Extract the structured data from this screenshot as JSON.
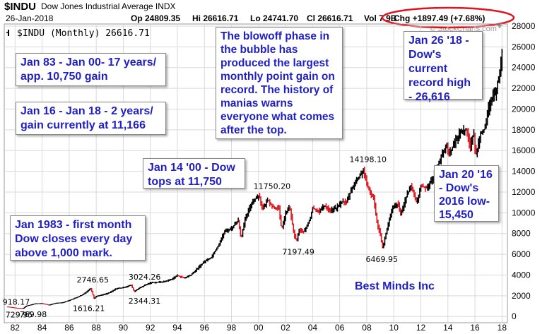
{
  "header": {
    "ticker": "$INDU",
    "name": "Dow Jones Industrial Average INDX",
    "date": "26-Jan-2018",
    "op": "Op 24809.35",
    "hi": "Hi 26616.71",
    "lo": "Lo 24741.70",
    "cl": "Cl 26616.71",
    "vol": "Vol 7.9B",
    "chg": "Chg +1897.49 (+7.68%)",
    "watermark": "© StockCharts.com",
    "legend": "$INDU (Monthly) 26616.71"
  },
  "colors": {
    "up_bar": "#000000",
    "down_bar": "#e0141e",
    "annotation_text": "#1f1fc4",
    "highlight_ellipse": "#e0141e",
    "grid": "#d9d9d9"
  },
  "annotations": {
    "a1": "Jan 83 - Jan 00- 17 years/\napp. 10,750 gain",
    "a2": "Jan 16 - Jan 18 - 2 years/\ngain currently at 11,166",
    "a3": "The blowoff phase in\nthe bubble has\nproduced the largest\nmonthly point gain on\nrecord. The history of\nmanias warns\neveryone what comes\nafter the top.",
    "a4": "Jan 26 '18 -\nDow's\ncurrent\nrecord high\n- 26,616",
    "a5": "Jan 14 '00 - Dow\ntops at 11,750",
    "a6": "Jan 20 '16\n- Dow's\n2016 low-\n15,450",
    "a7": "Jan 1983 - first month\nDow closes every day\nabove 1,000 mark.",
    "a8": "Best Minds Inc"
  },
  "chart_data": {
    "type": "line",
    "title": "$INDU Dow Jones Industrial Average INDX",
    "subtitle": "$INDU (Monthly) 26616.71",
    "xlabel": "",
    "ylabel": "",
    "x_ticks": [
      "82",
      "84",
      "86",
      "88",
      "90",
      "92",
      "94",
      "96",
      "98",
      "00",
      "02",
      "04",
      "06",
      "08",
      "10",
      "12",
      "14",
      "16",
      "18"
    ],
    "y_ticks": [
      0,
      2000,
      4000,
      6000,
      8000,
      10000,
      12000,
      14000,
      16000,
      18000,
      20000,
      22000,
      24000,
      26000,
      28000
    ],
    "xlim": [
      1981.2,
      2018.4
    ],
    "ylim": [
      -600,
      28200
    ],
    "grid": true,
    "series": [
      {
        "name": "$INDU (Monthly)",
        "points": [
          [
            1981.5,
            918.17
          ],
          [
            1982.2,
            790
          ],
          [
            1982.6,
            776.9
          ],
          [
            1982.8,
            1000
          ],
          [
            1983.0,
            1070
          ],
          [
            1983.5,
            1230
          ],
          [
            1984.0,
            1250
          ],
          [
            1984.5,
            1100
          ],
          [
            1985.0,
            1280
          ],
          [
            1985.5,
            1330
          ],
          [
            1986.0,
            1550
          ],
          [
            1986.5,
            1800
          ],
          [
            1987.0,
            2100
          ],
          [
            1987.6,
            2722.42
          ],
          [
            1987.83,
            1738.74
          ],
          [
            1988.0,
            1950
          ],
          [
            1988.5,
            2100
          ],
          [
            1989.0,
            2300
          ],
          [
            1989.5,
            2700
          ],
          [
            1989.9,
            2750
          ],
          [
            1990.4,
            2950
          ],
          [
            1990.6,
            2999.75
          ],
          [
            1990.8,
            2365.1
          ],
          [
            1991.0,
            2600
          ],
          [
            1991.5,
            2950
          ],
          [
            1992.0,
            3250
          ],
          [
            1992.5,
            3300
          ],
          [
            1993.0,
            3350
          ],
          [
            1993.5,
            3550
          ],
          [
            1994.0,
            3950
          ],
          [
            1994.5,
            3700
          ],
          [
            1995.0,
            4000
          ],
          [
            1995.5,
            4650
          ],
          [
            1996.0,
            5300
          ],
          [
            1996.5,
            5700
          ],
          [
            1997.0,
            6800
          ],
          [
            1997.5,
            8200
          ],
          [
            1998.0,
            8500
          ],
          [
            1998.5,
            9300
          ],
          [
            1998.7,
            7550
          ],
          [
            1999.0,
            9300
          ],
          [
            1999.5,
            11000
          ],
          [
            2000.04,
            11722.98
          ],
          [
            2000.3,
            10300
          ],
          [
            2000.7,
            11300
          ],
          [
            2001.0,
            10600
          ],
          [
            2001.5,
            10400
          ],
          [
            2001.7,
            8400
          ],
          [
            2002.0,
            9900
          ],
          [
            2002.3,
            10600
          ],
          [
            2002.6,
            8000
          ],
          [
            2002.8,
            7286.27
          ],
          [
            2003.0,
            8300
          ],
          [
            2003.4,
            8200
          ],
          [
            2003.8,
            9400
          ],
          [
            2004.0,
            10450
          ],
          [
            2004.5,
            10150
          ],
          [
            2004.9,
            10700
          ],
          [
            2005.3,
            10200
          ],
          [
            2005.8,
            10500
          ],
          [
            2006.2,
            11100
          ],
          [
            2006.5,
            11000
          ],
          [
            2006.9,
            12400
          ],
          [
            2007.3,
            13200
          ],
          [
            2007.77,
            14164.53
          ],
          [
            2008.0,
            12600
          ],
          [
            2008.5,
            11400
          ],
          [
            2008.8,
            8800
          ],
          [
            2009.0,
            8000
          ],
          [
            2009.18,
            6547.05
          ],
          [
            2009.5,
            8500
          ],
          [
            2009.9,
            10400
          ],
          [
            2010.3,
            10900
          ],
          [
            2010.5,
            9800
          ],
          [
            2010.9,
            11500
          ],
          [
            2011.3,
            12600
          ],
          [
            2011.7,
            10900
          ],
          [
            2012.0,
            12600
          ],
          [
            2012.4,
            12400
          ],
          [
            2012.8,
            13100
          ],
          [
            2013.3,
            14800
          ],
          [
            2013.9,
            16500
          ],
          [
            2014.1,
            15700
          ],
          [
            2014.6,
            17000
          ],
          [
            2014.9,
            17800
          ],
          [
            2015.4,
            18000
          ],
          [
            2015.65,
            16300
          ],
          [
            2015.9,
            17700
          ],
          [
            2016.05,
            15450
          ],
          [
            2016.4,
            17700
          ],
          [
            2016.8,
            18200
          ],
          [
            2016.95,
            19800
          ],
          [
            2017.2,
            20900
          ],
          [
            2017.5,
            21500
          ],
          [
            2017.8,
            23400
          ],
          [
            2017.95,
            24700
          ],
          [
            2018.07,
            26616.71
          ]
        ]
      }
    ],
    "point_labels": [
      {
        "text": "918.17",
        "x": 1981.5,
        "y": 918.17
      },
      {
        "text": "729.95",
        "x": 1981.5,
        "y": 729.95
      },
      {
        "text": "769.98",
        "x": 1982.6,
        "y": 769.98
      },
      {
        "text": "2746.65",
        "x": 1987.6,
        "y": 2746.65
      },
      {
        "text": "1616.21",
        "x": 1987.83,
        "y": 1616.21
      },
      {
        "text": "3024.26",
        "x": 1990.6,
        "y": 3024.26
      },
      {
        "text": "2344.31",
        "x": 1990.8,
        "y": 2344.31
      },
      {
        "text": "11750.20",
        "x": 2000.04,
        "y": 11750.2
      },
      {
        "text": "7197.49",
        "x": 2002.8,
        "y": 7197.49
      },
      {
        "text": "14198.10",
        "x": 2007.77,
        "y": 14198.1
      },
      {
        "text": "6469.95",
        "x": 2009.18,
        "y": 6469.95
      }
    ]
  }
}
